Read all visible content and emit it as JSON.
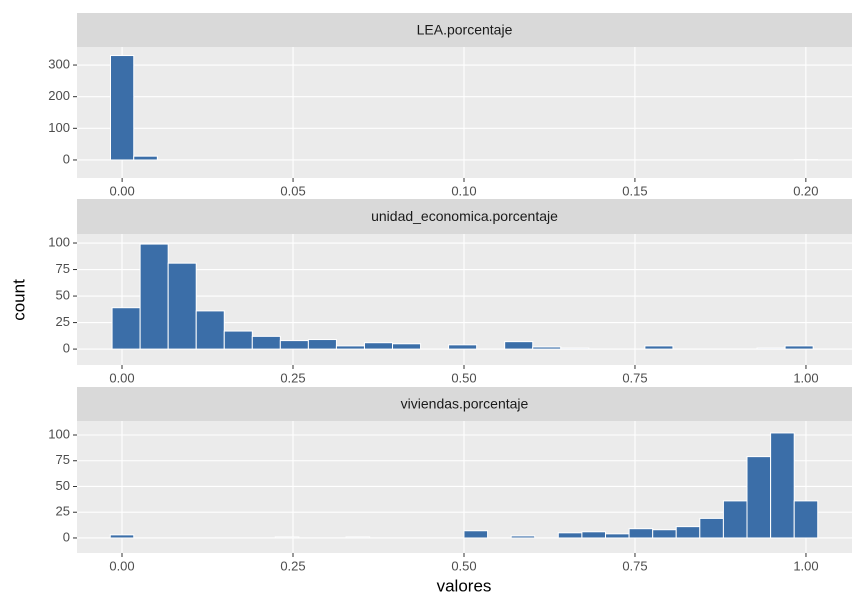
{
  "x_label": "valores",
  "y_label": "count",
  "chart_data": [
    {
      "type": "histogram",
      "title": "LEA.porcentaje",
      "color": "#3b6ea8",
      "grid": true,
      "bins": [
        -0.0034,
        0.0034,
        0.0103,
        0.0172,
        0.0241,
        0.031,
        0.0379,
        0.0448,
        0.0517,
        0.0586,
        0.0655,
        0.0724,
        0.0793,
        0.0862,
        0.0931,
        0.1,
        0.1069,
        0.1138,
        0.1207,
        0.1276,
        0.1345,
        0.1414,
        0.1483,
        0.1552,
        0.1621,
        0.169,
        0.1759,
        0.1828,
        0.1897,
        0.1966,
        0.2034
      ],
      "values": [
        330,
        12,
        0,
        0,
        0,
        0,
        0,
        0,
        0,
        0,
        0,
        0,
        0,
        0,
        0,
        0,
        0,
        0,
        0,
        0,
        0,
        0,
        0,
        0,
        0,
        0,
        0,
        0,
        0,
        1
      ],
      "xlim": [
        -0.0132,
        0.2135
      ],
      "xticks": [
        {
          "value": 0,
          "label": "0.00"
        },
        {
          "value": 0.05,
          "label": "0.05"
        },
        {
          "value": 0.1,
          "label": "0.10"
        },
        {
          "value": 0.15,
          "label": "0.15"
        },
        {
          "value": 0.2,
          "label": "0.20"
        }
      ],
      "ylim": [
        -57,
        357
      ],
      "yticks": [
        0,
        100,
        200,
        300
      ]
    },
    {
      "type": "histogram",
      "title": "unidad_economica.porcentaje",
      "color": "#3b6ea8",
      "grid": true,
      "bins": [
        -0.0145,
        0.0265,
        0.0675,
        0.1085,
        0.1495,
        0.1905,
        0.2315,
        0.2725,
        0.3135,
        0.3545,
        0.3955,
        0.4365,
        0.4775,
        0.5185,
        0.5595,
        0.6005,
        0.6415,
        0.6825,
        0.7235,
        0.7645,
        0.8055,
        0.8465,
        0.8875,
        0.9285,
        0.9695,
        1.0105,
        1.0515
      ],
      "values": [
        39,
        99,
        81,
        36,
        17,
        12,
        8,
        9,
        3,
        6,
        5,
        0,
        4,
        0,
        7,
        2,
        1,
        0,
        0,
        3,
        0,
        0,
        0,
        1,
        3,
        0
      ],
      "xlim": [
        -0.0658,
        1.0673
      ],
      "xticks": [
        {
          "value": 0,
          "label": "0.00"
        },
        {
          "value": 0.25,
          "label": "0.25"
        },
        {
          "value": 0.5,
          "label": "0.50"
        },
        {
          "value": 0.75,
          "label": "0.75"
        },
        {
          "value": 1,
          "label": "1.00"
        }
      ],
      "ylim": [
        -15,
        108.5
      ],
      "yticks": [
        0,
        25,
        50,
        75,
        100
      ]
    },
    {
      "type": "histogram",
      "title": "viviendas.porcentaje",
      "color": "#3b6ea8",
      "grid": true,
      "bins": [
        -0.0172,
        0.0172,
        0.0517,
        0.0862,
        0.1207,
        0.1552,
        0.1897,
        0.2241,
        0.2586,
        0.2931,
        0.3276,
        0.3621,
        0.3966,
        0.431,
        0.4655,
        0.5,
        0.5345,
        0.569,
        0.6034,
        0.6379,
        0.6724,
        0.7069,
        0.7414,
        0.7759,
        0.8103,
        0.8448,
        0.8793,
        0.9138,
        0.9483,
        0.9828,
        1.0172
      ],
      "values": [
        3,
        0,
        0,
        0,
        0,
        0,
        0,
        1,
        0,
        0,
        1,
        0,
        0,
        0,
        0,
        7,
        0,
        2,
        0,
        5,
        6,
        4,
        9,
        8,
        11,
        19,
        36,
        79,
        102,
        36
      ],
      "xlim": [
        -0.0658,
        1.0673
      ],
      "xticks": [
        {
          "value": 0,
          "label": "0.00"
        },
        {
          "value": 0.25,
          "label": "0.25"
        },
        {
          "value": 0.5,
          "label": "0.50"
        },
        {
          "value": 0.75,
          "label": "0.75"
        },
        {
          "value": 1,
          "label": "1.00"
        }
      ],
      "ylim": [
        -14.6,
        113.6
      ],
      "yticks": [
        0,
        25,
        50,
        75,
        100
      ]
    }
  ]
}
